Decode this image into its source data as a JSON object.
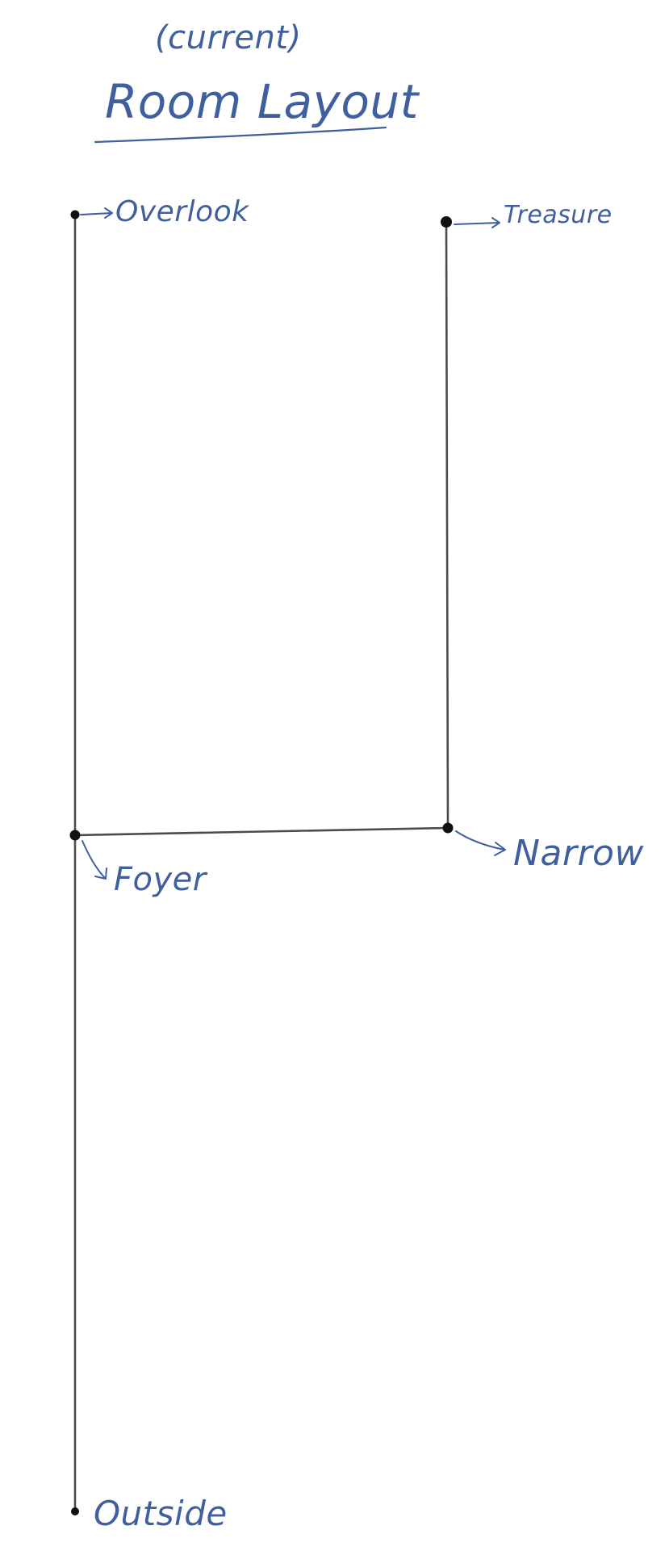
{
  "heading": {
    "subtitle": "(current)",
    "title": "Room Layout"
  },
  "rooms": {
    "overlook": "Overlook",
    "treasure": "Treasure",
    "foyer": "Foyer",
    "narrow": "Narrow",
    "outside": "Outside"
  },
  "connections": [
    [
      "Overlook",
      "Foyer"
    ],
    [
      "Foyer",
      "Outside"
    ],
    [
      "Foyer",
      "Narrow"
    ],
    [
      "Narrow",
      "Treasure"
    ]
  ],
  "colors": {
    "ink": "#3f5f9e",
    "pencil": "#2c2c2c",
    "node": "#111111"
  }
}
